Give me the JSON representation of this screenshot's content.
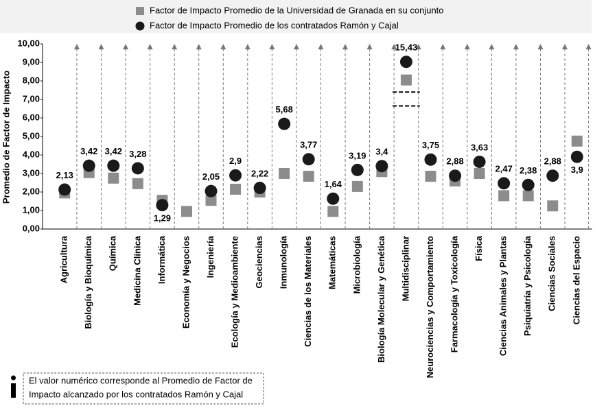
{
  "chart_data": {
    "type": "dot",
    "y_label": "Promedio de Factor de Impacto",
    "categories": [
      "Agricultura",
      "Biología y Bioquímica",
      "Química",
      "Medicina Clínica",
      "Informática",
      "Economía y Negocios",
      "Ingeniería",
      "Ecología y Medioambiente",
      "Geociencias",
      "Inmunología",
      "Ciencias de los Materiales",
      "Matemáticas",
      "Microbiología",
      "Biología Molecular y Genética",
      "Multidisciplinar",
      "Neurociencias y Comportamiento",
      "Farmacología y Toxicología",
      "Física",
      "Ciencias Animales y Plantas",
      "Psiquiatría y Psicología",
      "Ciencias Sociales",
      "Ciencias del Espacio"
    ],
    "series": [
      {
        "name": "Factor de Impacto Promedio de la Universidad de Granada en su conjunto",
        "marker": "square",
        "color": "#8c8c8c",
        "values": [
          1.95,
          3.05,
          2.75,
          2.45,
          1.55,
          0.95,
          1.55,
          2.15,
          2.0,
          3.0,
          2.85,
          0.95,
          2.3,
          3.1,
          14.45,
          2.85,
          2.6,
          3.0,
          1.8,
          1.8,
          1.25,
          4.75
        ]
      },
      {
        "name": "Factor de Impacto Promedio de los contratados Ramón y Cajal",
        "marker": "circle",
        "color": "#1a1a1a",
        "values": [
          2.13,
          3.42,
          3.42,
          3.28,
          1.29,
          null,
          2.05,
          2.9,
          2.22,
          5.68,
          3.77,
          1.64,
          3.19,
          3.4,
          15.43,
          3.75,
          2.88,
          3.63,
          2.47,
          2.38,
          2.88,
          3.9
        ],
        "value_labels": [
          "2,13",
          "3,42",
          "3,42",
          "3,28",
          "1,29",
          null,
          "2,05",
          "2,9",
          "2,22",
          "5,68",
          "3,77",
          "1,64",
          "3,19",
          "3,4",
          "15,43",
          "3,75",
          "2,88",
          "3,63",
          "2,47",
          "2,38",
          "2,88",
          "3,9"
        ]
      }
    ],
    "axis_break": {
      "category": "Multidisciplinar",
      "above": 7,
      "skip": 6.4
    },
    "ylim": [
      0,
      10
    ],
    "yticks": [
      {
        "value": 0,
        "label": "0,00"
      },
      {
        "value": 1,
        "label": "1,00"
      },
      {
        "value": 2,
        "label": "2,00"
      },
      {
        "value": 3,
        "label": "3,00"
      },
      {
        "value": 4,
        "label": "4,00"
      },
      {
        "value": 5,
        "label": "5,00"
      },
      {
        "value": 6,
        "label": "6,00"
      },
      {
        "value": 7,
        "label": "7,00"
      },
      {
        "value": 8,
        "label": "8,00"
      },
      {
        "value": 9,
        "label": "9,00"
      },
      {
        "value": 10,
        "label": "10,00"
      }
    ],
    "note_lines": [
      "El valor numérico corresponde al Promedio de Factor de",
      "Impacto alcanzado por los contratados Ramón y Cajal"
    ]
  }
}
